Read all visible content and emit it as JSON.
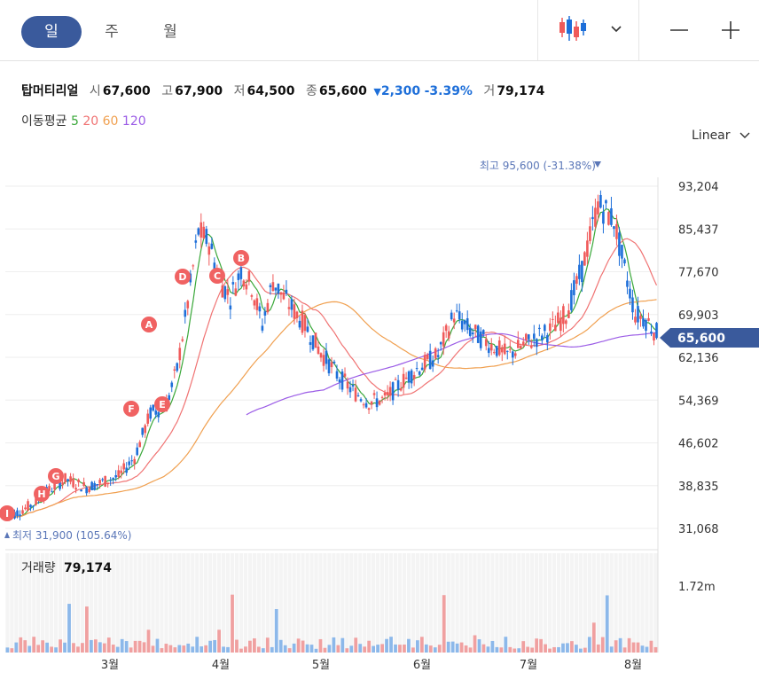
{
  "periods": {
    "day": "일",
    "week": "주",
    "month": "월"
  },
  "stock": {
    "name": "탑머티리얼",
    "open_label": "시",
    "open": "67,600",
    "high_label": "고",
    "high": "67,900",
    "low_label": "저",
    "low": "64,500",
    "close_label": "종",
    "close": "65,600",
    "change": "2,300",
    "change_pct": "-3.39%",
    "volume_label": "거",
    "volume": "79,174"
  },
  "ma": {
    "label": "이동평균",
    "p5": "5",
    "p20": "20",
    "p60": "60",
    "p120": "120"
  },
  "scale": {
    "label": "Linear"
  },
  "colors": {
    "up": "#f05a5a",
    "down": "#1e6fd9",
    "ma5": "#3aa83a",
    "ma20": "#f07373",
    "ma60": "#f0a050",
    "ma120": "#9b5ce6",
    "current_badge": "#3a5a9c"
  },
  "chart_data": {
    "type": "candlestick",
    "y_ticks": [
      "93,204",
      "85,437",
      "77,670",
      "69,903",
      "62,136",
      "54,369",
      "46,602",
      "38,835",
      "31,068"
    ],
    "current_price": "65,600",
    "max_label": "최고 95,600 (-31.38%)",
    "min_label": "최저 31,900 (105.64%)",
    "x_ticks": [
      "3월",
      "4월",
      "5월",
      "6월",
      "7월",
      "8월"
    ],
    "volume_title": "거래량",
    "volume_value": "79,174",
    "volume_tick": "1.72m",
    "markers": [
      "A",
      "B",
      "C",
      "D",
      "E",
      "F",
      "G",
      "H",
      "I"
    ],
    "ma_series": [
      "5",
      "20",
      "60",
      "120"
    ],
    "ylim": [
      31068,
      93204
    ]
  }
}
